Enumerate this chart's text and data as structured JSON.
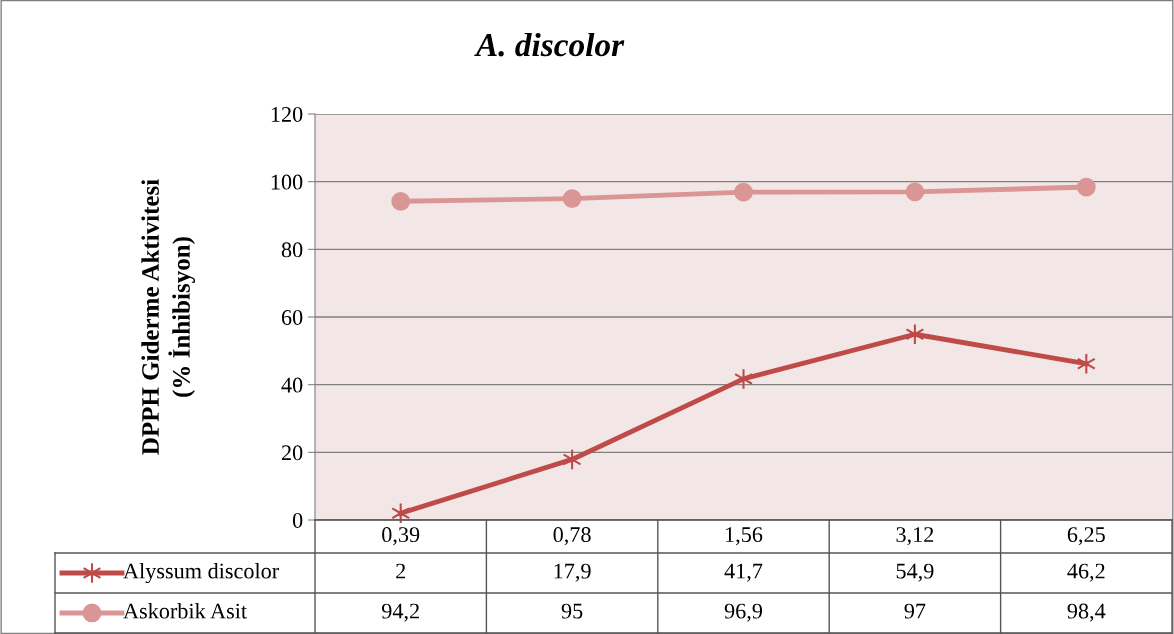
{
  "chart_data": {
    "type": "line",
    "title": "A. discolor",
    "ylabel": "DPPH Giderme Aktivitesi\n(% İnhibisyon)",
    "categories": [
      "0,39",
      "0,78",
      "1,56",
      "3,12",
      "6,25"
    ],
    "series": [
      {
        "name": "Alyssum discolor",
        "color": "#be4b48",
        "marker": "cross",
        "values": [
          2,
          17.9,
          41.7,
          54.9,
          46.2
        ],
        "value_labels": [
          "2",
          "17,9",
          "41,7",
          "54,9",
          "46,2"
        ]
      },
      {
        "name": "Askorbik Asit",
        "color": "#d99694",
        "marker": "circle",
        "values": [
          94.2,
          95,
          96.9,
          97,
          98.4
        ],
        "value_labels": [
          "94,2",
          "95",
          "96,9",
          "97",
          "98,4"
        ]
      }
    ],
    "ylim": [
      0,
      120
    ],
    "yticks": [
      0,
      20,
      40,
      60,
      80,
      100,
      120
    ],
    "grid": "y",
    "legend": "bottom left",
    "data_labels": true,
    "line_style": "solid"
  }
}
